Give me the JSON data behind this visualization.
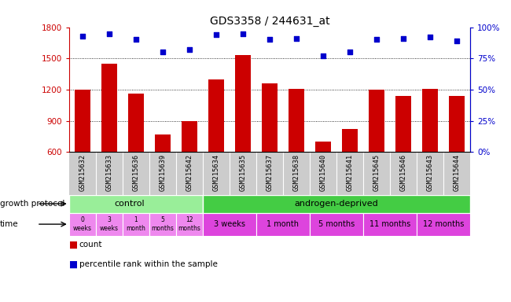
{
  "title": "GDS3358 / 244631_at",
  "samples": [
    "GSM215632",
    "GSM215633",
    "GSM215636",
    "GSM215639",
    "GSM215642",
    "GSM215634",
    "GSM215635",
    "GSM215637",
    "GSM215638",
    "GSM215640",
    "GSM215641",
    "GSM215645",
    "GSM215646",
    "GSM215643",
    "GSM215644"
  ],
  "counts": [
    1200,
    1450,
    1160,
    770,
    900,
    1300,
    1530,
    1260,
    1210,
    700,
    820,
    1200,
    1140,
    1210,
    1140
  ],
  "percentiles": [
    93,
    95,
    90,
    80,
    82,
    94,
    95,
    90,
    91,
    77,
    80,
    90,
    91,
    92,
    89
  ],
  "ylim_left": [
    600,
    1800
  ],
  "ylim_right": [
    0,
    100
  ],
  "yticks_left": [
    600,
    900,
    1200,
    1500,
    1800
  ],
  "yticks_right": [
    0,
    25,
    50,
    75,
    100
  ],
  "bar_color": "#cc0000",
  "dot_color": "#0000cc",
  "axis_color_left": "#cc0000",
  "axis_color_right": "#0000cc",
  "protocol_control_color": "#99ee99",
  "protocol_androgen_color": "#44cc44",
  "time_control_color": "#ee88ee",
  "time_androgen_color": "#dd44dd",
  "sample_band_color": "#cccccc",
  "bg_color": "#ffffff",
  "ctrl_n": 5,
  "andr_n": 10,
  "control_times": [
    "0\nweeks",
    "3\nweeks",
    "1\nmonth",
    "5\nmonths",
    "12\nmonths"
  ],
  "androgen_times": [
    "3 weeks",
    "1 month",
    "5 months",
    "11 months",
    "12 months"
  ],
  "androgen_group_sizes": [
    2,
    2,
    2,
    2,
    2
  ]
}
